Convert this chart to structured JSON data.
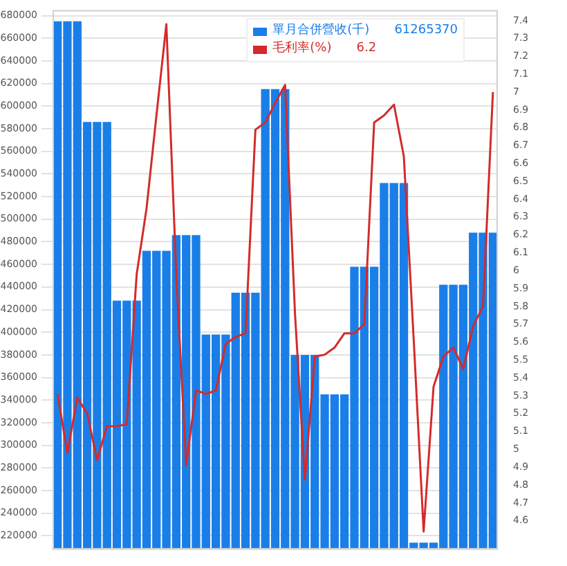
{
  "chart_data": {
    "type": "bar",
    "categories": [
      null,
      null,
      null,
      null,
      null,
      null,
      null,
      null,
      null,
      null,
      null,
      null,
      null,
      null,
      null,
      null,
      null,
      null,
      null,
      null,
      null,
      null,
      null,
      null,
      null,
      null,
      null,
      null,
      null,
      null,
      null,
      null,
      null,
      null,
      null,
      null,
      null,
      null,
      null,
      null,
      null,
      null,
      null,
      null,
      null
    ],
    "series": [
      {
        "name": "單月合併營收(千)",
        "color": "#1a7ee8",
        "values": [
          675000,
          675000,
          675000,
          586000,
          586000,
          586000,
          428000,
          428000,
          428000,
          472000,
          472000,
          472000,
          486000,
          486000,
          486000,
          398000,
          398000,
          398000,
          435000,
          435000,
          435000,
          615000,
          615000,
          615000,
          380000,
          380000,
          380000,
          345000,
          345000,
          345000,
          458000,
          458000,
          458000,
          532000,
          532000,
          532000,
          214000,
          214000,
          214000,
          442000,
          442000,
          442000,
          488000,
          488000,
          488000
        ]
      },
      {
        "name": "毛利率(%)",
        "type": "line",
        "axis": "y2",
        "color": "#d42a2a",
        "values": [
          5.31,
          4.98,
          5.29,
          5.2,
          4.94,
          5.13,
          5.13,
          5.14,
          5.98,
          6.35,
          6.87,
          7.38,
          5.98,
          4.91,
          5.33,
          5.31,
          5.33,
          5.59,
          5.63,
          5.65,
          6.79,
          6.83,
          6.94,
          7.04,
          5.76,
          4.83,
          5.52,
          5.53,
          5.57,
          5.65,
          5.65,
          5.7,
          6.83,
          6.87,
          6.93,
          6.64,
          5.61,
          4.54,
          5.35,
          5.52,
          5.57,
          5.45,
          5.69,
          5.8,
          7.0
        ]
      }
    ],
    "ylim": [
      208000,
      685000
    ],
    "yticks": [
      220000,
      240000,
      260000,
      280000,
      300000,
      320000,
      340000,
      360000,
      380000,
      400000,
      420000,
      440000,
      460000,
      480000,
      500000,
      520000,
      540000,
      560000,
      580000,
      600000,
      620000,
      640000,
      660000,
      680000
    ],
    "y2lim": [
      4.44,
      7.46
    ],
    "y2ticks": [
      4.6,
      4.7,
      4.8,
      4.9,
      5,
      5.1,
      5.2,
      5.3,
      5.4,
      5.5,
      5.6,
      5.7,
      5.8,
      5.9,
      6,
      6.1,
      6.2,
      6.3,
      6.4,
      6.5,
      6.6,
      6.7,
      6.8,
      6.9,
      7,
      7.1,
      7.2,
      7.3,
      7.4
    ],
    "annotations": [
      "61265370",
      "6.2"
    ],
    "grid": "y",
    "legend": "top right",
    "marker": "none",
    "line_style": "solid"
  }
}
